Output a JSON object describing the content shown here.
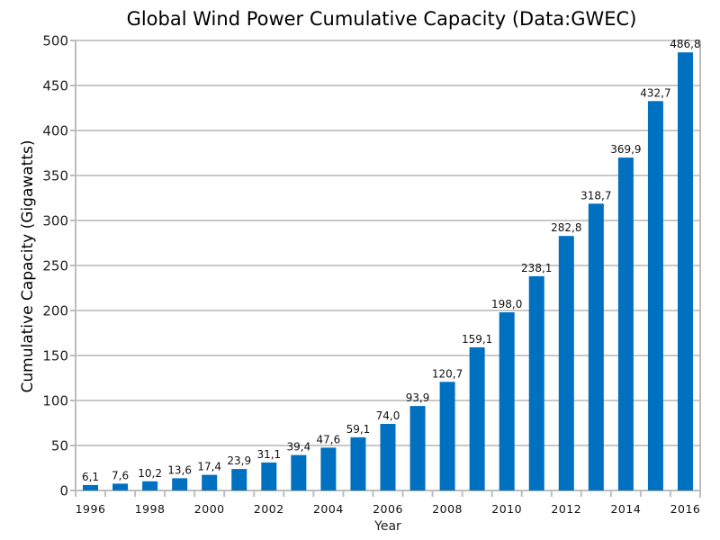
{
  "chart_data": {
    "type": "bar",
    "title": "Global Wind Power Cumulative Capacity (Data:GWEC)",
    "xlabel": "Year",
    "ylabel": "Cumulative Capacity (Gigawatts)",
    "ylim": [
      0,
      500
    ],
    "yticks": [
      "0",
      "50",
      "100",
      "150",
      "200",
      "250",
      "300",
      "350",
      "400",
      "450",
      "500"
    ],
    "ytick_values": [
      0,
      50,
      100,
      150,
      200,
      250,
      300,
      350,
      400,
      450,
      500
    ],
    "grid": true,
    "legend": "none",
    "bar_color": "#0070C0",
    "categories": [
      "1996",
      "1997",
      "1998",
      "1999",
      "2000",
      "2001",
      "2002",
      "2003",
      "2004",
      "2005",
      "2006",
      "2007",
      "2008",
      "2009",
      "2010",
      "2011",
      "2012",
      "2013",
      "2014",
      "2015",
      "2016"
    ],
    "xtick_labels": [
      "1996",
      "",
      "1998",
      "",
      "2000",
      "",
      "2002",
      "",
      "2004",
      "",
      "2006",
      "",
      "2008",
      "",
      "2010",
      "",
      "2012",
      "",
      "2014",
      "",
      "2016"
    ],
    "values": [
      6.1,
      7.6,
      10.2,
      13.6,
      17.4,
      23.9,
      31.1,
      39.4,
      47.6,
      59.1,
      74.0,
      93.9,
      120.7,
      159.1,
      198.0,
      238.1,
      282.8,
      318.7,
      369.9,
      432.7,
      486.8
    ],
    "data_labels": [
      "6,1",
      "7,6",
      "10,2",
      "13,6",
      "17,4",
      "23,9",
      "31,1",
      "39,4",
      "47,6",
      "59,1",
      "74,0",
      "93,9",
      "120,7",
      "159,1",
      "198,0",
      "238,1",
      "282,8",
      "318,7",
      "369,9",
      "432,7",
      "486,8"
    ]
  }
}
